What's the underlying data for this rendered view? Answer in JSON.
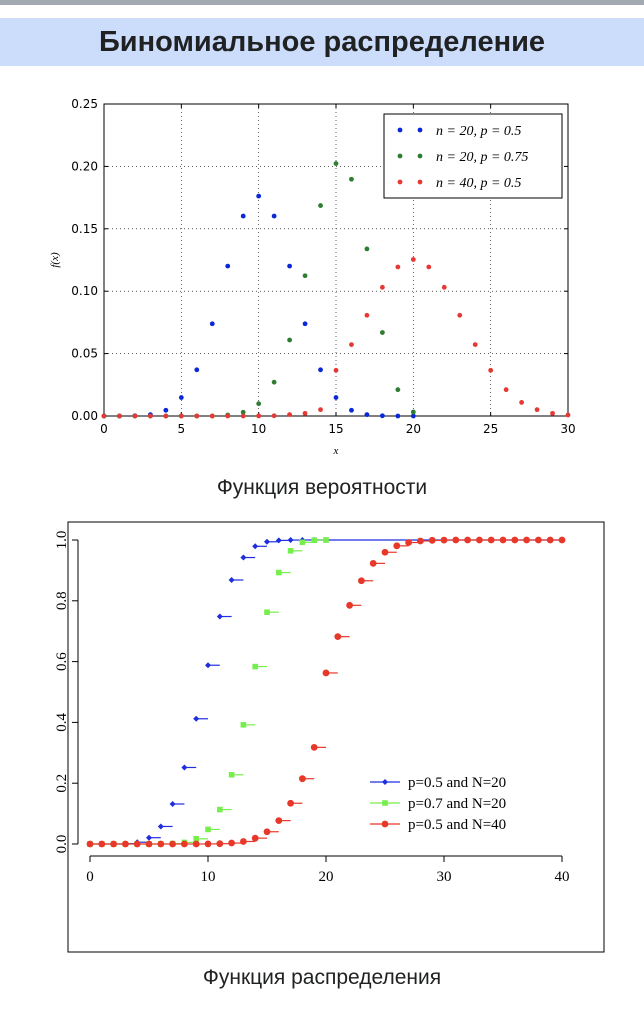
{
  "infobox": {
    "title": "Биномиальное распределение",
    "caption_pmf": "Функция вероятности",
    "caption_cdf": "Функция распределения"
  },
  "chart_data": [
    {
      "type": "scatter",
      "title": "",
      "xlabel": "x",
      "ylabel": "f(x)",
      "xlim": [
        0,
        30
      ],
      "ylim": [
        0,
        0.25
      ],
      "xticks": [
        "0",
        "5",
        "10",
        "15",
        "20",
        "25",
        "30"
      ],
      "yticks": [
        "0.00",
        "0.05",
        "0.10",
        "0.15",
        "0.20",
        "0.25"
      ],
      "grid": true,
      "legend_position": "top-right",
      "series": [
        {
          "name": "n = 20, p = 0.5",
          "color": "#0a28d8",
          "x": [
            0,
            1,
            2,
            3,
            4,
            5,
            6,
            7,
            8,
            9,
            10,
            11,
            12,
            13,
            14,
            15,
            16,
            17,
            18,
            19,
            20
          ],
          "y": [
            0.0,
            0.0,
            0.0002,
            0.0011,
            0.0046,
            0.0148,
            0.037,
            0.0739,
            0.1201,
            0.1602,
            0.1762,
            0.1602,
            0.1201,
            0.0739,
            0.037,
            0.0148,
            0.0046,
            0.0011,
            0.0002,
            0.0,
            0.0
          ]
        },
        {
          "name": "n = 20, p = 0.75",
          "color": "#2e7d32",
          "x": [
            0,
            1,
            2,
            3,
            4,
            5,
            6,
            7,
            8,
            9,
            10,
            11,
            12,
            13,
            14,
            15,
            16,
            17,
            18,
            19,
            20
          ],
          "y": [
            0,
            0,
            0,
            0,
            0,
            0,
            0,
            0,
            0.0008,
            0.003,
            0.0099,
            0.0271,
            0.0609,
            0.1124,
            0.1686,
            0.2023,
            0.1897,
            0.1339,
            0.0669,
            0.0211,
            0.0032
          ]
        },
        {
          "name": "n = 40, p = 0.5",
          "color": "#e53935",
          "x": [
            0,
            1,
            2,
            3,
            4,
            5,
            6,
            7,
            8,
            9,
            10,
            11,
            12,
            13,
            14,
            15,
            16,
            17,
            18,
            19,
            20,
            21,
            22,
            23,
            24,
            25,
            26,
            27,
            28,
            29,
            30
          ],
          "y": [
            0,
            0,
            0,
            0,
            0,
            0,
            0,
            0,
            0,
            0,
            0.0001,
            0.0002,
            0.0011,
            0.0021,
            0.0051,
            0.0366,
            0.0572,
            0.0807,
            0.1031,
            0.1194,
            0.1254,
            0.1194,
            0.1031,
            0.0807,
            0.0572,
            0.0366,
            0.0211,
            0.0109,
            0.0051,
            0.0021,
            0.0008
          ]
        }
      ]
    },
    {
      "type": "line",
      "title": "",
      "xlabel": "",
      "ylabel": "",
      "xlim": [
        0,
        40
      ],
      "ylim": [
        0,
        1
      ],
      "xticks": [
        "0",
        "10",
        "20",
        "30",
        "40"
      ],
      "yticks": [
        "0.0",
        "0.2",
        "0.4",
        "0.6",
        "0.8",
        "1.0"
      ],
      "grid": false,
      "legend_position": "right-bottom",
      "series": [
        {
          "name": "p=0.5 and N=20",
          "color": "#1e2ee0",
          "x": [
            0,
            1,
            2,
            3,
            4,
            5,
            6,
            7,
            8,
            9,
            10,
            11,
            12,
            13,
            14,
            15,
            16,
            17,
            18,
            19,
            20
          ],
          "y": [
            0.0,
            0.0,
            0.0002,
            0.0013,
            0.0059,
            0.0207,
            0.0577,
            0.1316,
            0.2517,
            0.4119,
            0.5881,
            0.7483,
            0.8684,
            0.9423,
            0.9793,
            0.9941,
            0.9987,
            0.9998,
            1.0,
            1.0,
            1.0
          ]
        },
        {
          "name": "p=0.7 and N=20",
          "color": "#76ee4c",
          "x": [
            0,
            1,
            2,
            3,
            4,
            5,
            6,
            7,
            8,
            9,
            10,
            11,
            12,
            13,
            14,
            15,
            16,
            17,
            18,
            19,
            20
          ],
          "y": [
            0.0,
            0.0,
            0.0,
            0.0,
            0.0,
            0.0,
            0.0003,
            0.0013,
            0.0051,
            0.0171,
            0.048,
            0.1133,
            0.2277,
            0.392,
            0.5836,
            0.7625,
            0.8929,
            0.9645,
            0.9924,
            0.9992,
            1.0
          ]
        },
        {
          "name": "p=0.5 and N=40",
          "color": "#e8382a",
          "x": [
            0,
            1,
            2,
            3,
            4,
            5,
            6,
            7,
            8,
            9,
            10,
            11,
            12,
            13,
            14,
            15,
            16,
            17,
            18,
            19,
            20,
            21,
            22,
            23,
            24,
            25,
            26,
            27,
            28,
            29,
            30,
            31,
            32,
            33,
            34,
            35,
            36,
            37,
            38,
            39,
            40
          ],
          "y": [
            0,
            0,
            0,
            0,
            0,
            0,
            0,
            0,
            0,
            0.0001,
            0.0003,
            0.0011,
            0.0032,
            0.0083,
            0.0192,
            0.0403,
            0.0769,
            0.1341,
            0.2148,
            0.3179,
            0.5627,
            0.6821,
            0.7852,
            0.8659,
            0.9231,
            0.9597,
            0.9808,
            0.9917,
            0.9968,
            0.9989,
            0.9997,
            0.9999,
            1,
            1,
            1,
            1,
            1,
            1,
            1,
            1,
            1
          ]
        }
      ]
    }
  ]
}
